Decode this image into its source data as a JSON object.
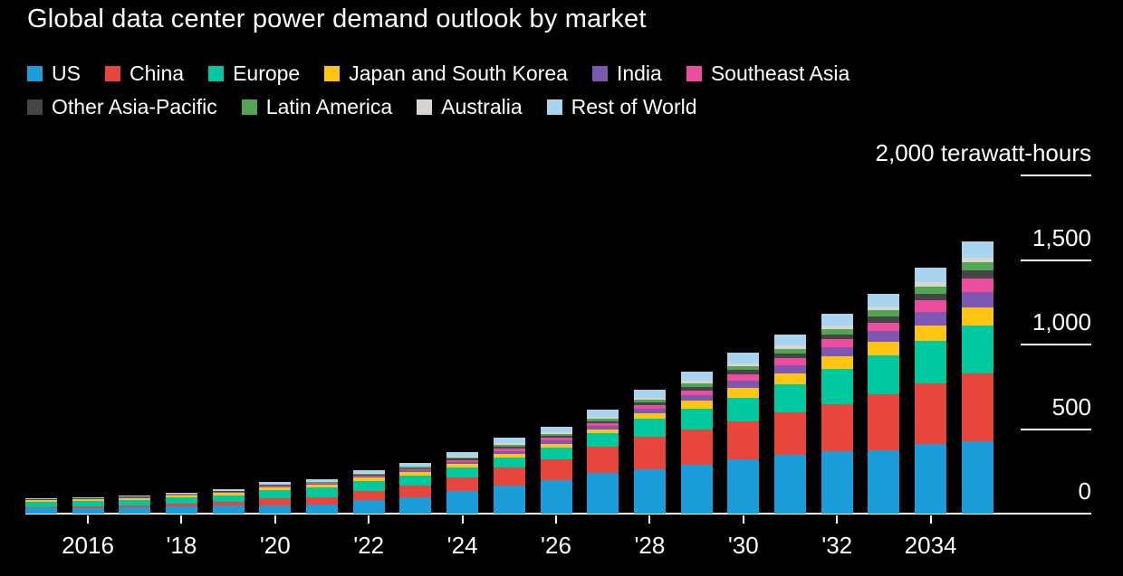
{
  "chart_data": {
    "type": "bar",
    "stacked": true,
    "title": "Global data center power demand outlook by market",
    "unit": "terawatt-hours",
    "background_color": "#000000",
    "text_color": "#ffffff",
    "legend_position": "top",
    "grid": false,
    "x": [
      2015,
      2016,
      2017,
      2018,
      2019,
      2020,
      2021,
      2022,
      2023,
      2024,
      2025,
      2026,
      2027,
      2028,
      2029,
      2030,
      2031,
      2032,
      2033,
      2034,
      2035
    ],
    "x_tick_labels": [
      {
        "year": 2016,
        "label": "2016"
      },
      {
        "year": 2018,
        "label": "'18"
      },
      {
        "year": 2020,
        "label": "'20"
      },
      {
        "year": 2022,
        "label": "'22"
      },
      {
        "year": 2024,
        "label": "'24"
      },
      {
        "year": 2026,
        "label": "'26"
      },
      {
        "year": 2028,
        "label": "'28"
      },
      {
        "year": 2030,
        "label": "'30"
      },
      {
        "year": 2032,
        "label": "'32"
      },
      {
        "year": 2034,
        "label": "2034"
      }
    ],
    "y_axis": {
      "min": 0,
      "max": 2000,
      "ticks": [
        {
          "value": 0,
          "label": "0"
        },
        {
          "value": 500,
          "label": "500"
        },
        {
          "value": 1000,
          "label": "1,000"
        },
        {
          "value": 1500,
          "label": "1,500"
        },
        {
          "value": 2000,
          "label": "2,000 terawatt-hours"
        }
      ]
    },
    "legend": {
      "row_break_index": 6
    },
    "series": [
      {
        "name": "US",
        "color": "#1b9dd9",
        "values": [
          30,
          32,
          36,
          42,
          48,
          50,
          55,
          80,
          95,
          135,
          165,
          200,
          240,
          262,
          290,
          320,
          350,
          370,
          375,
          410,
          430
        ]
      },
      {
        "name": "China",
        "color": "#e8463c",
        "values": [
          10,
          11,
          13,
          16,
          20,
          43,
          43,
          53,
          70,
          80,
          107,
          123,
          155,
          193,
          210,
          225,
          251,
          278,
          330,
          358,
          400
        ]
      },
      {
        "name": "Europe",
        "color": "#00c9a0",
        "values": [
          28,
          30,
          33,
          36,
          40,
          48,
          55,
          58,
          60,
          60,
          62,
          70,
          80,
          105,
          120,
          140,
          165,
          210,
          230,
          255,
          285
        ]
      },
      {
        "name": "Japan and South Korea",
        "color": "#fdc412",
        "values": [
          10,
          11,
          11,
          12,
          14,
          16,
          16,
          21,
          21,
          21,
          21,
          21,
          21,
          32,
          48,
          59,
          64,
          70,
          80,
          91,
          107
        ]
      },
      {
        "name": "India",
        "color": "#7e57b2",
        "values": [
          2,
          2,
          3,
          3,
          4,
          5,
          6,
          8,
          10,
          11,
          16,
          18,
          22,
          27,
          32,
          43,
          48,
          55,
          65,
          80,
          90
        ]
      },
      {
        "name": "Southeast Asia",
        "color": "#ed4d9e",
        "values": [
          2,
          2,
          2,
          3,
          3,
          4,
          5,
          6,
          8,
          11,
          16,
          16,
          16,
          21,
          30,
          37,
          43,
          48,
          50,
          70,
          80
        ]
      },
      {
        "name": "Other Asia-Pacific",
        "color": "#454545",
        "values": [
          2,
          2,
          2,
          2,
          3,
          3,
          4,
          5,
          6,
          8,
          10,
          11,
          13,
          16,
          21,
          25,
          27,
          30,
          35,
          37,
          45
        ]
      },
      {
        "name": "Latin America",
        "color": "#52a552",
        "values": [
          1,
          2,
          2,
          2,
          3,
          3,
          4,
          5,
          6,
          8,
          10,
          12,
          14,
          17,
          21,
          25,
          28,
          32,
          37,
          42,
          48
        ]
      },
      {
        "name": "Australia",
        "color": "#d8d5d0",
        "values": [
          1,
          1,
          1,
          1,
          1,
          2,
          2,
          3,
          4,
          5,
          8,
          10,
          11,
          12,
          14,
          16,
          18,
          20,
          24,
          27,
          30
        ]
      },
      {
        "name": "Rest of World",
        "color": "#a8d4f0",
        "values": [
          5,
          5,
          6,
          7,
          8,
          12,
          14,
          18,
          22,
          27,
          32,
          35,
          43,
          48,
          53,
          60,
          65,
          70,
          75,
          85,
          96
        ]
      }
    ]
  }
}
